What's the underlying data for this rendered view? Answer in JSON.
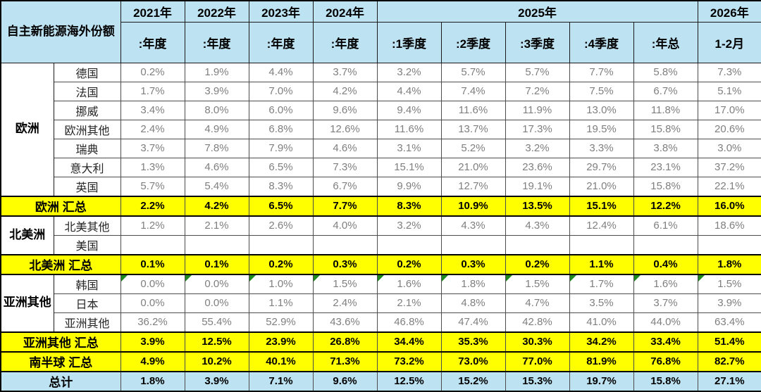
{
  "colors": {
    "header_blue": "#bde2f2",
    "summary_yellow": "#ffff00",
    "total_blue": "#bde2f2",
    "data_text": "#7f7f7f",
    "label_text": "#262626",
    "triangle_green": "#1f8b1f"
  },
  "header": {
    "title": "自主新能源海外份额",
    "years": [
      {
        "label": "2021年",
        "sub": ":年度"
      },
      {
        "label": "2022年",
        "sub": ":年度"
      },
      {
        "label": "2023年",
        "sub": ":年度"
      },
      {
        "label": "2024年",
        "sub": ":年度"
      }
    ],
    "year_2025": {
      "label": "2025年",
      "subs": [
        ":1季度",
        ":2季度",
        ":3季度",
        ":4季度",
        ":年总"
      ]
    },
    "year_2026": {
      "label": "2026年",
      "sub": "1-2月"
    }
  },
  "rows": [
    {
      "type": "data",
      "group": "欧洲",
      "group_rowspan": 7,
      "label": "德国",
      "values": [
        "0.2%",
        "1.9%",
        "4.4%",
        "3.7%",
        "3.2%",
        "5.7%",
        "5.7%",
        "7.7%",
        "5.8%",
        "7.3%"
      ]
    },
    {
      "type": "data",
      "label": "法国",
      "values": [
        "1.7%",
        "3.9%",
        "7.0%",
        "4.2%",
        "4.4%",
        "7.4%",
        "7.2%",
        "7.5%",
        "6.7%",
        "5.1%"
      ]
    },
    {
      "type": "data",
      "label": "挪威",
      "values": [
        "3.4%",
        "8.0%",
        "6.0%",
        "9.6%",
        "9.4%",
        "11.6%",
        "11.9%",
        "13.0%",
        "11.8%",
        "17.0%"
      ]
    },
    {
      "type": "data",
      "label": "欧洲其他",
      "values": [
        "2.4%",
        "4.9%",
        "6.8%",
        "12.6%",
        "11.6%",
        "13.7%",
        "17.3%",
        "19.5%",
        "15.8%",
        "20.6%"
      ]
    },
    {
      "type": "data",
      "label": "瑞典",
      "values": [
        "3.7%",
        "7.8%",
        "7.9%",
        "4.6%",
        "3.1%",
        "5.2%",
        "3.2%",
        "3.3%",
        "3.8%",
        "3.0%"
      ]
    },
    {
      "type": "data",
      "label": "意大利",
      "values": [
        "1.3%",
        "4.6%",
        "6.5%",
        "7.3%",
        "15.1%",
        "21.0%",
        "23.6%",
        "29.7%",
        "23.1%",
        "37.2%"
      ]
    },
    {
      "type": "data",
      "label": "英国",
      "values": [
        "5.7%",
        "5.4%",
        "8.3%",
        "6.7%",
        "9.9%",
        "12.7%",
        "19.1%",
        "21.0%",
        "15.8%",
        "22.1%"
      ]
    },
    {
      "type": "summary",
      "label": "欧洲 汇总",
      "values": [
        "2.2%",
        "4.2%",
        "6.5%",
        "7.7%",
        "8.3%",
        "10.9%",
        "13.5%",
        "15.1%",
        "12.2%",
        "16.0%"
      ]
    },
    {
      "type": "data",
      "group": "北美洲",
      "group_rowspan": 2,
      "label": "北美其他",
      "values": [
        "1.2%",
        "2.1%",
        "2.6%",
        "4.0%",
        "3.2%",
        "4.3%",
        "4.3%",
        "12.4%",
        "6.1%",
        "18.6%"
      ]
    },
    {
      "type": "data",
      "label": "美国",
      "values": [
        "",
        "",
        "",
        "",
        "",
        "",
        "",
        "",
        "",
        ""
      ]
    },
    {
      "type": "summary",
      "label": "北美洲 汇总",
      "values": [
        "0.1%",
        "0.1%",
        "0.2%",
        "0.3%",
        "0.2%",
        "0.3%",
        "0.2%",
        "1.1%",
        "0.4%",
        "1.8%"
      ]
    },
    {
      "type": "data",
      "group": "亚洲其他",
      "group_rowspan": 3,
      "label": "韩国",
      "error_flags": true,
      "values": [
        "0.0%",
        "0.0%",
        "1.0%",
        "1.5%",
        "1.6%",
        "1.8%",
        "1.5%",
        "1.7%",
        "1.6%",
        "1.5%"
      ]
    },
    {
      "type": "data",
      "label": "日本",
      "values": [
        "0.0%",
        "0.0%",
        "1.1%",
        "2.4%",
        "2.1%",
        "4.8%",
        "4.7%",
        "3.5%",
        "3.7%",
        "3.9%"
      ]
    },
    {
      "type": "data",
      "label": "亚洲其他",
      "values": [
        "36.2%",
        "55.4%",
        "52.9%",
        "43.6%",
        "46.8%",
        "47.4%",
        "42.8%",
        "41.0%",
        "44.0%",
        "63.4%"
      ]
    },
    {
      "type": "summary",
      "label": "亚洲其他 汇总",
      "values": [
        "3.9%",
        "12.5%",
        "23.9%",
        "26.8%",
        "34.4%",
        "35.3%",
        "30.3%",
        "34.2%",
        "33.4%",
        "51.4%"
      ]
    },
    {
      "type": "summary",
      "label": "南半球 汇总",
      "values": [
        "4.9%",
        "10.2%",
        "40.1%",
        "71.3%",
        "73.2%",
        "73.0%",
        "77.0%",
        "81.9%",
        "76.8%",
        "82.7%"
      ]
    },
    {
      "type": "total",
      "label": "总计",
      "values": [
        "1.8%",
        "3.9%",
        "7.1%",
        "9.6%",
        "12.5%",
        "15.2%",
        "15.3%",
        "19.7%",
        "15.8%",
        "27.1%"
      ]
    }
  ]
}
